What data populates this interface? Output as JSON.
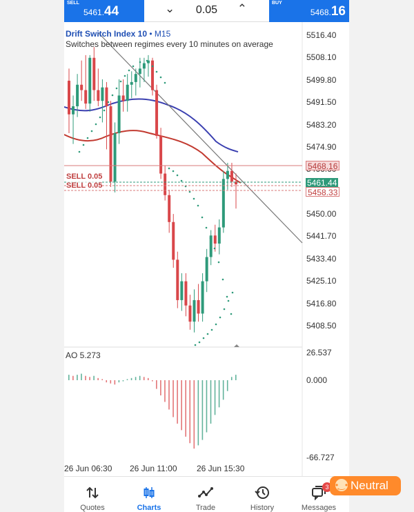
{
  "trade_bar": {
    "sell_label": "SELL",
    "sell_price_main": "5461.",
    "sell_price_big": "44",
    "lot_decrease": "⌄",
    "lot_value": "0.05",
    "lot_increase": "⌃",
    "buy_label": "BUY",
    "buy_price_main": "5468.",
    "buy_price_big": "16"
  },
  "chart": {
    "symbol": "Drift Switch Index 10",
    "timeframe": " • M15",
    "description": "Switches between regimes every 10 minutes on average",
    "y_axis_labels": [
      "5516.40",
      "5508.10",
      "5499.80",
      "5491.50",
      "5483.20",
      "5474.90",
      "5466.60",
      "5458.30",
      "5450.00",
      "5441.70",
      "5433.40",
      "5425.10",
      "5416.80",
      "5408.50"
    ],
    "price_tags": {
      "buy": "5468.16",
      "current": "5461.44",
      "sell_order": "5458.33"
    },
    "order_labels": [
      "SELL 0.05",
      "SELL 0.05"
    ],
    "oscillator": {
      "name": "AO 5.273",
      "max": "26.537",
      "zero": "0.000",
      "min": "-66.727"
    },
    "x_axis_labels": [
      "26 Jun 06:30",
      "26 Jun 11:00",
      "26 Jun 15:30"
    ],
    "colors": {
      "bull": "#2e9a7a",
      "bear": "#d9474a",
      "ma_fast": "#c23a30",
      "ma_slow": "#3a3fb0",
      "sar": "#2e9a7a"
    }
  },
  "chart_data": {
    "type": "candlestick",
    "y_range": [
      5405,
      5519
    ],
    "candles": [
      {
        "o": 5499.5,
        "h": 5504,
        "l": 5480,
        "c": 5487
      },
      {
        "o": 5487,
        "h": 5494,
        "l": 5476,
        "c": 5490
      },
      {
        "o": 5490,
        "h": 5502,
        "l": 5486,
        "c": 5498
      },
      {
        "o": 5498,
        "h": 5507,
        "l": 5492,
        "c": 5496
      },
      {
        "o": 5496,
        "h": 5509,
        "l": 5489,
        "c": 5491
      },
      {
        "o": 5491,
        "h": 5509,
        "l": 5488,
        "c": 5508
      },
      {
        "o": 5508,
        "h": 5512,
        "l": 5492,
        "c": 5496
      },
      {
        "o": 5496,
        "h": 5504,
        "l": 5490,
        "c": 5492
      },
      {
        "o": 5492,
        "h": 5500,
        "l": 5484,
        "c": 5497
      },
      {
        "o": 5497,
        "h": 5499,
        "l": 5474,
        "c": 5490
      },
      {
        "o": 5490,
        "h": 5492,
        "l": 5460,
        "c": 5462
      },
      {
        "o": 5462,
        "h": 5484,
        "l": 5458,
        "c": 5480
      },
      {
        "o": 5480,
        "h": 5500,
        "l": 5476,
        "c": 5494
      },
      {
        "o": 5494,
        "h": 5500,
        "l": 5488,
        "c": 5492
      },
      {
        "o": 5492,
        "h": 5502,
        "l": 5488,
        "c": 5498
      },
      {
        "o": 5498,
        "h": 5503,
        "l": 5493,
        "c": 5499
      },
      {
        "o": 5499,
        "h": 5504,
        "l": 5494,
        "c": 5502
      },
      {
        "o": 5502,
        "h": 5508,
        "l": 5497,
        "c": 5504
      },
      {
        "o": 5504,
        "h": 5508,
        "l": 5499,
        "c": 5506
      },
      {
        "o": 5506,
        "h": 5509,
        "l": 5501,
        "c": 5507
      },
      {
        "o": 5507,
        "h": 5508,
        "l": 5494,
        "c": 5496
      },
      {
        "o": 5496,
        "h": 5498,
        "l": 5478,
        "c": 5479
      },
      {
        "o": 5479,
        "h": 5482,
        "l": 5463,
        "c": 5465
      },
      {
        "o": 5465,
        "h": 5468,
        "l": 5455,
        "c": 5457
      },
      {
        "o": 5457,
        "h": 5459,
        "l": 5443,
        "c": 5447
      },
      {
        "o": 5447,
        "h": 5450,
        "l": 5430,
        "c": 5433
      },
      {
        "o": 5433,
        "h": 5436,
        "l": 5415,
        "c": 5418
      },
      {
        "o": 5418,
        "h": 5428,
        "l": 5414,
        "c": 5425
      },
      {
        "o": 5425,
        "h": 5428,
        "l": 5412,
        "c": 5416
      },
      {
        "o": 5416,
        "h": 5420,
        "l": 5407,
        "c": 5410
      },
      {
        "o": 5410,
        "h": 5422,
        "l": 5406,
        "c": 5418
      },
      {
        "o": 5418,
        "h": 5424,
        "l": 5410,
        "c": 5413
      },
      {
        "o": 5413,
        "h": 5428,
        "l": 5410,
        "c": 5425
      },
      {
        "o": 5425,
        "h": 5437,
        "l": 5421,
        "c": 5434
      },
      {
        "o": 5434,
        "h": 5444,
        "l": 5431,
        "c": 5442
      },
      {
        "o": 5442,
        "h": 5446,
        "l": 5436,
        "c": 5439
      },
      {
        "o": 5439,
        "h": 5448,
        "l": 5435,
        "c": 5445
      },
      {
        "o": 5445,
        "h": 5466,
        "l": 5443,
        "c": 5463
      },
      {
        "o": 5463,
        "h": 5469,
        "l": 5459,
        "c": 5466
      },
      {
        "o": 5466,
        "h": 5469,
        "l": 5460,
        "c": 5462
      },
      {
        "o": 5462,
        "h": 5465,
        "l": 5452,
        "c": 5461
      }
    ],
    "ao": [
      5,
      4,
      5,
      6,
      4,
      3,
      4,
      2,
      1,
      -2,
      -3,
      -4,
      -2,
      -1,
      1,
      2,
      3,
      4,
      3,
      2,
      -1,
      -8,
      -14,
      -20,
      -27,
      -34,
      -40,
      -46,
      -52,
      -58,
      -63,
      -60,
      -55,
      -48,
      -40,
      -32,
      -25,
      -18,
      -10,
      3,
      5
    ]
  }
}
